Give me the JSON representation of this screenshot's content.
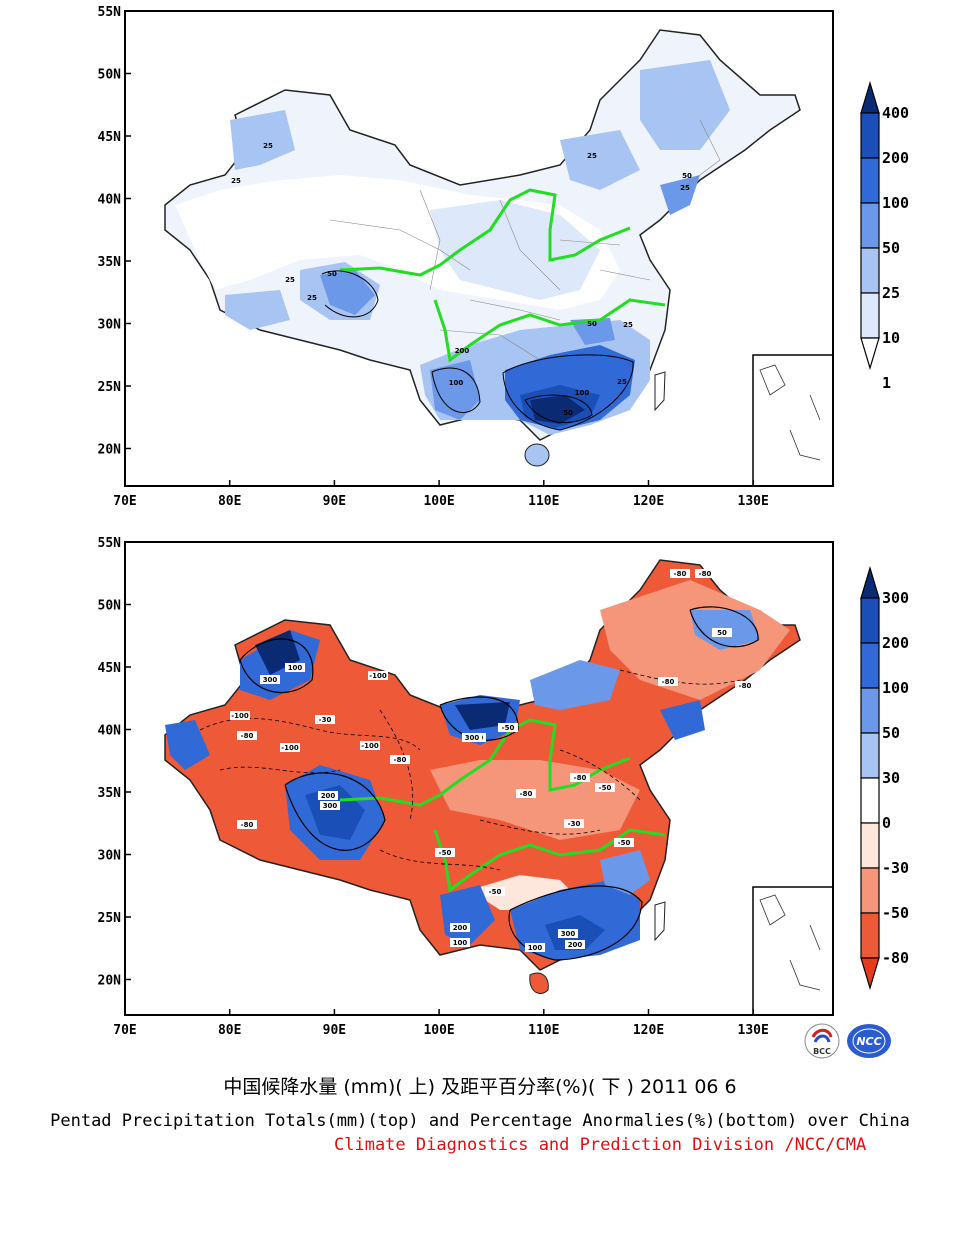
{
  "top_panel": {
    "lat_ticks": [
      "55N",
      "50N",
      "45N",
      "40N",
      "35N",
      "30N",
      "25N",
      "20N"
    ],
    "lon_ticks": [
      "70E",
      "80E",
      "90E",
      "100E",
      "110E",
      "120E",
      "130E"
    ],
    "colorbar": {
      "labels": [
        "400",
        "200",
        "100",
        "50",
        "25",
        "10",
        "1"
      ],
      "colors": [
        "#0a2a73",
        "#1b4fb8",
        "#3169d6",
        "#6b98e8",
        "#a7c4f2",
        "#dde8fb",
        "#ffffff"
      ]
    },
    "contour_labels": [
      "25",
      "25",
      "25",
      "25",
      "50",
      "25",
      "50",
      "25",
      "50",
      "25",
      "100",
      "200",
      "100",
      "50",
      "25"
    ]
  },
  "bottom_panel": {
    "lat_ticks": [
      "55N",
      "50N",
      "45N",
      "40N",
      "35N",
      "30N",
      "25N",
      "20N"
    ],
    "lon_ticks": [
      "70E",
      "80E",
      "90E",
      "100E",
      "110E",
      "120E",
      "130E"
    ],
    "colorbar": {
      "labels": [
        "300",
        "200",
        "100",
        "50",
        "30",
        "0",
        "-30",
        "-50",
        "-80"
      ],
      "colors": [
        "#0a2a73",
        "#1b4fb8",
        "#3169d6",
        "#6b98e8",
        "#a7c4f2",
        "#ffffff",
        "#fde6dc",
        "#f5957a",
        "#ee5a38",
        "#e63a1e"
      ]
    },
    "contour_labels": [
      "-80",
      "-80",
      "50",
      "300",
      "100",
      "-100",
      "-100",
      "-80",
      "-30",
      "-100",
      "-100",
      "-80",
      "300",
      "200",
      "200",
      "-80",
      "-50",
      "-30",
      "-80",
      "-80",
      "-50",
      "300",
      "-80",
      "-50",
      "-50",
      "200",
      "100",
      "300",
      "-80",
      "-50",
      "200",
      "100"
    ]
  },
  "captions": {
    "title_zh": "中国候降水量 (mm)( 上) 及距平百分率(%)( 下 ) 2011 06 6",
    "title_en": "Pentad Precipitation Totals(mm)(top) and Percentage Anormalies(%)(bottom) over China",
    "credit": "Climate Diagnostics and Prediction Division /NCC/CMA"
  },
  "logos": {
    "bcc_text": "BCC",
    "ncc_text": "NCC"
  }
}
